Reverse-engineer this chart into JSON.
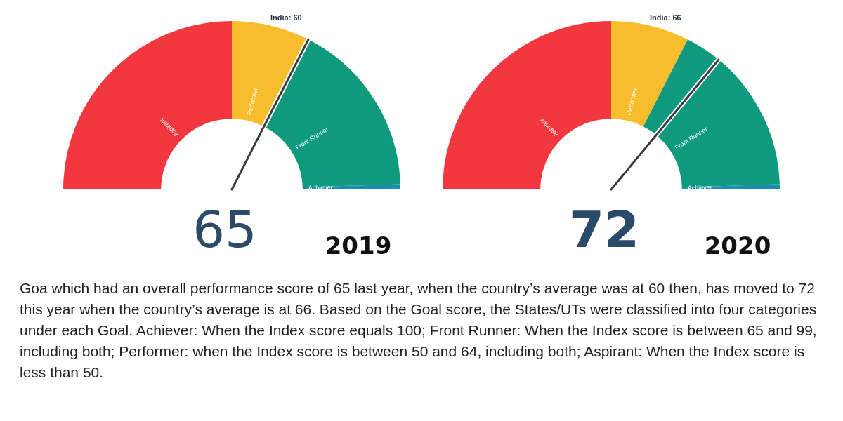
{
  "chart_data": [
    {
      "type": "donut",
      "categories": [
        "Aspirant",
        "Performer",
        "Front Runner",
        "Achiever"
      ],
      "values": [
        50,
        15,
        34,
        1
      ],
      "colors": [
        "#f2373f",
        "#f8bd2c",
        "#0f9a7d",
        "#1b8db0"
      ],
      "needle": "Front Runner",
      "legend": false,
      "annotations": [
        "65",
        "India: 60",
        "2019"
      ]
    },
    {
      "type": "donut",
      "categories": [
        "Aspirant",
        "Performer",
        "Front Runner",
        "Achiever"
      ],
      "values": [
        50,
        15,
        34,
        1
      ],
      "colors": [
        "#f2373f",
        "#f8bd2c",
        "#0f9a7d",
        "#1b8db0"
      ],
      "needle": "Front Runner",
      "legend": false,
      "annotations": [
        "72",
        "India: 66",
        "2020",
        "Goa which had an overall performance score of 65 last year, when the country’s average was at 60 then, has moved to 72 this year when the country’s average is at 66. Based on the Goal score, the States/UTs were classified into four categories under each Goal. Achiever: When the Index score equals 100; Front Runner: When the Index score is between 65 and 99, including both; Performer: when the Index score is between 50 and 64, including both; Aspirant: When the Index score is less than 50."
      ]
    }
  ]
}
